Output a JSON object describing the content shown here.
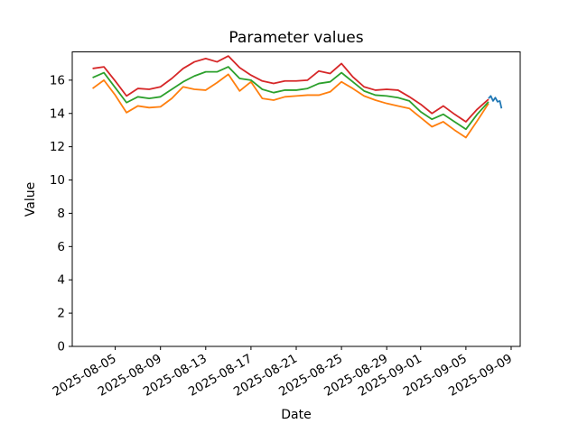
{
  "figure": {
    "title": "Parameter values",
    "xlabel": "Date",
    "ylabel": "Value"
  },
  "colors": {
    "background": "#ffffff",
    "axes": "#000000",
    "red": "#d62728",
    "green": "#2ca02c",
    "orange": "#ff7f0e",
    "blue": "#1f77b4"
  },
  "chart_data": {
    "type": "line",
    "title": "Parameter values",
    "xlabel": "Date",
    "ylabel": "Value",
    "grid": false,
    "legend": "none",
    "ylim": [
      0,
      17.7
    ],
    "y_ticks": [
      0,
      2,
      4,
      6,
      8,
      10,
      12,
      14,
      16
    ],
    "xlim_days": [
      -1.8,
      37.8
    ],
    "x_start_date": "2025-08-03",
    "x_step": "1 day",
    "x_tick_days": [
      2,
      6,
      10,
      14,
      18,
      22,
      26,
      29,
      33,
      37
    ],
    "x_tick_labels": [
      "2025-08-05",
      "2025-08-09",
      "2025-08-13",
      "2025-08-17",
      "2025-08-21",
      "2025-08-25",
      "2025-08-29",
      "2025-09-01",
      "2025-09-05",
      "2025-09-09"
    ],
    "dates": [
      "2025-08-03",
      "2025-08-04",
      "2025-08-05",
      "2025-08-06",
      "2025-08-07",
      "2025-08-08",
      "2025-08-09",
      "2025-08-10",
      "2025-08-11",
      "2025-08-12",
      "2025-08-13",
      "2025-08-14",
      "2025-08-15",
      "2025-08-16",
      "2025-08-17",
      "2025-08-18",
      "2025-08-19",
      "2025-08-20",
      "2025-08-21",
      "2025-08-22",
      "2025-08-23",
      "2025-08-24",
      "2025-08-25",
      "2025-08-26",
      "2025-08-27",
      "2025-08-28",
      "2025-08-29",
      "2025-08-30",
      "2025-08-31",
      "2025-09-01",
      "2025-09-02",
      "2025-09-03",
      "2025-09-04",
      "2025-09-05",
      "2025-09-06",
      "2025-09-07"
    ],
    "series": [
      {
        "name": "orange",
        "color": "#ff7f0e",
        "values": [
          15.5,
          16.0,
          15.1,
          14.05,
          14.45,
          14.35,
          14.4,
          14.9,
          15.6,
          15.45,
          15.4,
          15.85,
          16.35,
          15.35,
          15.9,
          14.9,
          14.8,
          15.0,
          15.05,
          15.1,
          15.1,
          15.3,
          15.9,
          15.5,
          15.05,
          14.8,
          14.6,
          14.45,
          14.3,
          13.75,
          13.2,
          13.5,
          13.0,
          12.55,
          13.55,
          14.6
        ]
      },
      {
        "name": "green",
        "color": "#2ca02c",
        "values": [
          16.15,
          16.45,
          15.55,
          14.65,
          15.0,
          14.9,
          15.0,
          15.45,
          15.9,
          16.25,
          16.5,
          16.5,
          16.8,
          16.1,
          16.0,
          15.45,
          15.25,
          15.4,
          15.4,
          15.5,
          15.8,
          15.9,
          16.45,
          15.9,
          15.35,
          15.1,
          15.05,
          14.95,
          14.75,
          14.1,
          13.65,
          13.95,
          13.5,
          13.05,
          13.95,
          14.7
        ]
      },
      {
        "name": "red",
        "color": "#d62728",
        "values": [
          16.7,
          16.8,
          15.95,
          15.05,
          15.5,
          15.45,
          15.6,
          16.1,
          16.7,
          17.1,
          17.3,
          17.1,
          17.45,
          16.75,
          16.3,
          15.95,
          15.8,
          15.95,
          15.95,
          16.0,
          16.55,
          16.4,
          17.0,
          16.2,
          15.6,
          15.4,
          15.45,
          15.4,
          15.0,
          14.55,
          14.0,
          14.45,
          13.95,
          13.5,
          14.25,
          14.85
        ]
      },
      {
        "name": "blue",
        "color": "#1f77b4",
        "points_day_value": [
          [
            35.0,
            14.9
          ],
          [
            35.2,
            15.05
          ],
          [
            35.4,
            14.75
          ],
          [
            35.6,
            14.95
          ],
          [
            35.8,
            14.7
          ],
          [
            36.0,
            14.75
          ],
          [
            36.15,
            14.3
          ]
        ]
      }
    ]
  }
}
